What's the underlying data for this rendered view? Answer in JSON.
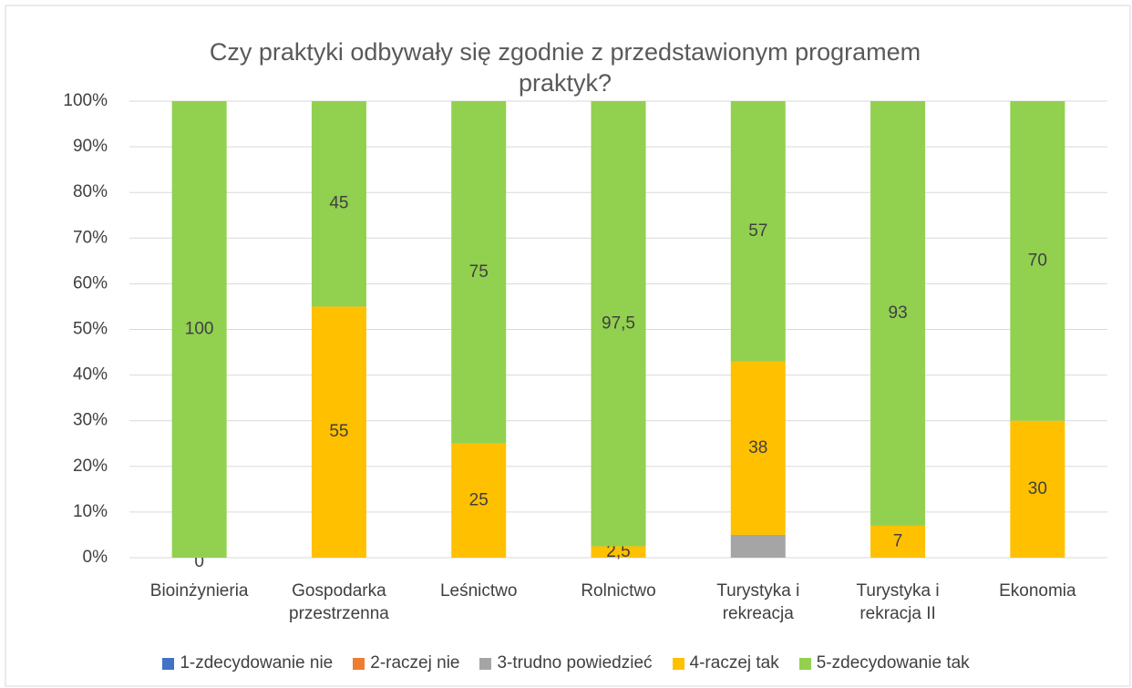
{
  "chart_data": {
    "type": "stacked_bar_100",
    "title": "Czy praktyki odbywały się zgodnie z przedstawionym programem praktyk?",
    "categories": [
      "Bioinżynieria",
      "Gospodarka przestrzenna",
      "Leśnictwo",
      "Rolnictwo",
      "Turystyka i rekreacja",
      "Turystyka i rekracja II",
      "Ekonomia"
    ],
    "series": [
      {
        "name": "1-zdecydowanie nie",
        "color": "#4472c4",
        "values": [
          null,
          null,
          null,
          null,
          null,
          null,
          null
        ]
      },
      {
        "name": "2-raczej nie",
        "color": "#ed7d31",
        "values": [
          null,
          null,
          null,
          null,
          null,
          null,
          null
        ]
      },
      {
        "name": "3-trudno powiedzieć",
        "color": "#a5a5a5",
        "values": [
          null,
          null,
          null,
          null,
          5,
          null,
          null
        ]
      },
      {
        "name": "4-raczej tak",
        "color": "#ffc000",
        "values": [
          0,
          55,
          25,
          2.5,
          38,
          7,
          30
        ],
        "value_labels": [
          "0",
          "55",
          "25",
          "2,5",
          "38",
          "7",
          "30"
        ]
      },
      {
        "name": "5-zdecydowanie tak",
        "color": "#92d050",
        "values": [
          100,
          45,
          75,
          97.5,
          57,
          93,
          70
        ],
        "value_labels": [
          "100",
          "45",
          "75",
          "97,5",
          "57",
          "93",
          "70"
        ]
      }
    ],
    "ylim": [
      0,
      100
    ],
    "yticks": [
      {
        "value": 0,
        "label": "0%"
      },
      {
        "value": 10,
        "label": "10%"
      },
      {
        "value": 20,
        "label": "20%"
      },
      {
        "value": 30,
        "label": "30%"
      },
      {
        "value": 40,
        "label": "40%"
      },
      {
        "value": 50,
        "label": "50%"
      },
      {
        "value": 60,
        "label": "60%"
      },
      {
        "value": 70,
        "label": "70%"
      },
      {
        "value": 80,
        "label": "80%"
      },
      {
        "value": 90,
        "label": "90%"
      },
      {
        "value": 100,
        "label": "100%"
      }
    ],
    "grid": true,
    "legend": "bottom"
  }
}
